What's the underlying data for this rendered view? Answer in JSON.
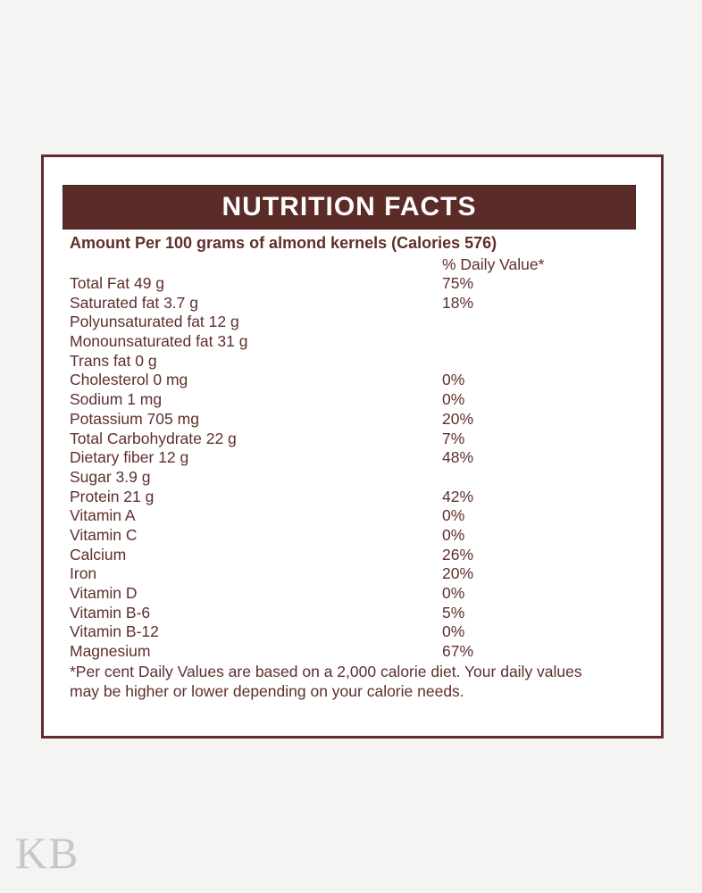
{
  "page": {
    "background_color": "#f4f4f3",
    "watermark": "KB",
    "watermark_color": "#c7c7c7"
  },
  "label": {
    "title": "NUTRITION FACTS",
    "subtitle": "Amount Per 100 grams of almond kernels (Calories 576)",
    "dv_header": "% Daily Value*",
    "rows": [
      {
        "name": "Total Fat 49 g",
        "dv": "75%"
      },
      {
        "name": "Saturated fat 3.7 g",
        "dv": "18%"
      },
      {
        "name": "Polyunsaturated fat 12 g",
        "dv": ""
      },
      {
        "name": "Monounsaturated fat 31 g",
        "dv": ""
      },
      {
        "name": "Trans fat 0 g",
        "dv": ""
      },
      {
        "name": "Cholesterol 0 mg",
        "dv": "0%"
      },
      {
        "name": "Sodium 1 mg",
        "dv": "0%"
      },
      {
        "name": "Potassium 705 mg",
        "dv": "20%"
      },
      {
        "name": "Total Carbohydrate 22 g",
        "dv": "7%"
      },
      {
        "name": "Dietary fiber 12 g",
        "dv": "48%"
      },
      {
        "name": "Sugar 3.9 g",
        "dv": ""
      },
      {
        "name": "Protein 21 g",
        "dv": "42%"
      },
      {
        "name": "Vitamin A",
        "dv": "0%"
      },
      {
        "name": "Vitamin C",
        "dv": "0%"
      },
      {
        "name": "Calcium",
        "dv": "26%"
      },
      {
        "name": "Iron",
        "dv": "20%"
      },
      {
        "name": "Vitamin D",
        "dv": "0%"
      },
      {
        "name": "Vitamin B-6",
        "dv": "5%"
      },
      {
        "name": "Vitamin B-12",
        "dv": "0%"
      },
      {
        "name": "Magnesium",
        "dv": "67%"
      }
    ],
    "footnote": "*Per cent Daily Values are based on a 2,000 calorie diet. Your daily values may be higher or lower depending on your calorie needs.",
    "colors": {
      "header_bg": "#5b2b28",
      "header_text": "#ffffff",
      "body_text": "#5e2f2c",
      "card_border": "#5e2f2c",
      "card_bg": "#ffffff"
    }
  }
}
